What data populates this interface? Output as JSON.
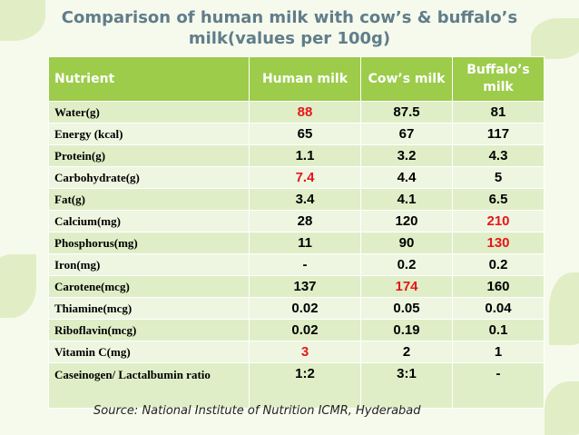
{
  "title": {
    "line1": "Comparison of human milk with cow’s & buffalo’s",
    "line2": "milk(values per 100g)"
  },
  "table": {
    "headers": [
      "Nutrient",
      "Human milk",
      "Cow’s milk",
      "Buffalo’s milk"
    ],
    "rows": [
      {
        "nutrient": "Water(g)",
        "human": "88",
        "cow": "87.5",
        "buffalo": "81"
      },
      {
        "nutrient": "Energy (kcal)",
        "human": "65",
        "cow": "67",
        "buffalo": "117"
      },
      {
        "nutrient": "Protein(g)",
        "human": "1.1",
        "cow": "3.2",
        "buffalo": "4.3"
      },
      {
        "nutrient": "Carbohydrate(g)",
        "human": "7.4",
        "cow": "4.4",
        "buffalo": "5"
      },
      {
        "nutrient": "Fat(g)",
        "human": "3.4",
        "cow": "4.1",
        "buffalo": "6.5"
      },
      {
        "nutrient": "Calcium(mg)",
        "human": "28",
        "cow": "120",
        "buffalo": "210"
      },
      {
        "nutrient": "Phosphorus(mg)",
        "human": "11",
        "cow": "90",
        "buffalo": "130"
      },
      {
        "nutrient": "Iron(mg)",
        "human": "-",
        "cow": "0.2",
        "buffalo": "0.2"
      },
      {
        "nutrient": "Carotene(mcg)",
        "human": "137",
        "cow": "174",
        "buffalo": "160"
      },
      {
        "nutrient": "Thiamine(mcg)",
        "human": "0.02",
        "cow": "0.05",
        "buffalo": "0.04"
      },
      {
        "nutrient": "Riboflavin(mcg)",
        "human": "0.02",
        "cow": "0.19",
        "buffalo": "0.1"
      },
      {
        "nutrient": "Vitamin C(mg)",
        "human": "3",
        "cow": "2",
        "buffalo": "1"
      },
      {
        "nutrient": "Caseinogen/ Lactalbumin ratio",
        "human": "1:2",
        "cow": "3:1",
        "buffalo": "-"
      }
    ]
  },
  "source": "Source: National Institute of Nutrition ICMR, Hyderabad",
  "colors": {
    "title": "#607d8b",
    "header_bg": "#9ccc4a",
    "highlight": "#e8141b"
  }
}
